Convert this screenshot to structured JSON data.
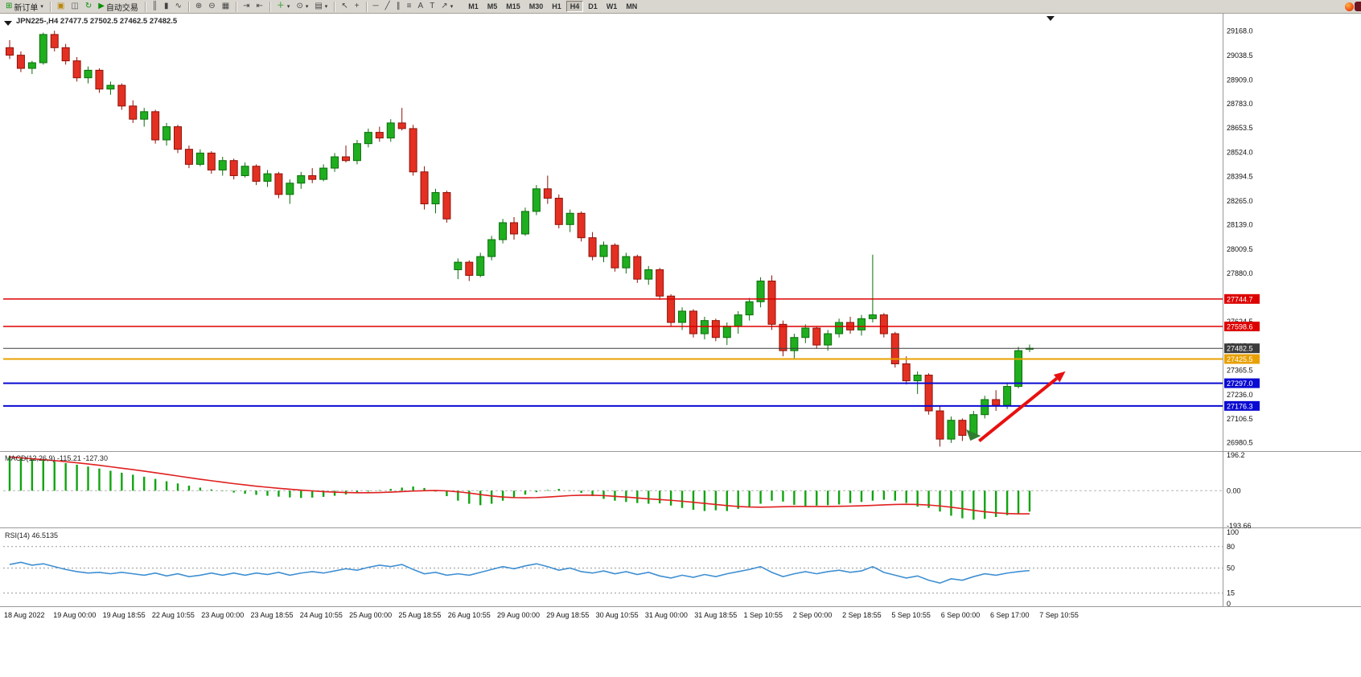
{
  "toolbar": {
    "groups": [
      {
        "items": [
          {
            "name": "new-order",
            "glyph": "⊞",
            "label": "新订单",
            "caret": true,
            "color": "#0a8f0a"
          }
        ]
      },
      {
        "items": [
          {
            "name": "chart-window",
            "glyph": "▣",
            "color": "#b8860b"
          },
          {
            "name": "market-watch",
            "glyph": "◫",
            "color": "#555555"
          },
          {
            "name": "refresh",
            "glyph": "↻",
            "color": "#0a8f0a"
          },
          {
            "name": "autotrade",
            "glyph": "▶",
            "label": "自动交易",
            "color": "#0a8f0a"
          }
        ]
      },
      {
        "items": [
          {
            "name": "bar-chart",
            "glyph": "║"
          },
          {
            "name": "candlestick-chart",
            "glyph": "▮"
          },
          {
            "name": "line-chart",
            "glyph": "∿"
          }
        ]
      },
      {
        "items": [
          {
            "name": "zoom-in",
            "glyph": "⊕"
          },
          {
            "name": "zoom-out",
            "glyph": "⊖"
          },
          {
            "name": "tile-windows",
            "glyph": "▦"
          }
        ]
      },
      {
        "items": [
          {
            "name": "auto-scroll",
            "glyph": "⇥"
          },
          {
            "name": "chart-shift",
            "glyph": "⇤"
          }
        ]
      },
      {
        "items": [
          {
            "name": "indicators",
            "glyph": "＋",
            "caret": true,
            "color": "#0a8f0a"
          },
          {
            "name": "periods",
            "glyph": "⊙",
            "caret": true
          },
          {
            "name": "templates",
            "glyph": "▤",
            "caret": true
          }
        ]
      },
      {
        "items": [
          {
            "name": "cursor",
            "glyph": "↖"
          },
          {
            "name": "crosshair",
            "glyph": "+"
          }
        ]
      },
      {
        "items": [
          {
            "name": "horizontal-line",
            "glyph": "─"
          },
          {
            "name": "trendline",
            "glyph": "╱"
          },
          {
            "name": "equidistant-channel",
            "glyph": "∥"
          },
          {
            "name": "fibonacci",
            "glyph": "≡"
          },
          {
            "name": "text",
            "glyph": "A"
          },
          {
            "name": "text-label",
            "glyph": "T"
          },
          {
            "name": "arrow-tools",
            "glyph": "↗",
            "caret": true
          }
        ]
      }
    ],
    "timeframes": [
      "M1",
      "M5",
      "M15",
      "M30",
      "H1",
      "H4",
      "D1",
      "W1",
      "MN"
    ],
    "active_timeframe": "H4"
  },
  "chart": {
    "symbol_label": "JPN225-,H4 27477.5 27502.5 27462.5 27482.5"
  },
  "chart_data": {
    "type": "candlestick",
    "title": "JPN225-,H4",
    "symbol": "JPN225-",
    "timeframe": "H4",
    "ohlc_current": {
      "open": 27477.5,
      "high": 27502.5,
      "low": 27462.5,
      "close": 27482.5
    },
    "colors": {
      "up_fill": "#1fae1f",
      "up_stroke": "#0b6e0b",
      "down_fill": "#e33022",
      "down_stroke": "#8f1208",
      "macd_histogram": "#0fa40f",
      "macd_signal": "#e02020",
      "rsi_line": "#3f8fd2"
    },
    "price_axis": [
      "29168.0",
      "29038.5",
      "28909.0",
      "28783.0",
      "28653.5",
      "28524.0",
      "28394.5",
      "28265.0",
      "28139.0",
      "28009.5",
      "27880.0",
      "27754.5",
      "27624.5",
      "27495.0",
      "27365.5",
      "27236.0",
      "27106.5",
      "26980.5"
    ],
    "x_labels": [
      "18 Aug 2022",
      "19 Aug 00:00",
      "19 Aug 18:55",
      "22 Aug 10:55",
      "23 Aug 00:00",
      "23 Aug 18:55",
      "24 Aug 10:55",
      "25 Aug 00:00",
      "25 Aug 18:55",
      "26 Aug 10:55",
      "29 Aug 00:00",
      "29 Aug 18:55",
      "30 Aug 10:55",
      "31 Aug 00:00",
      "31 Aug 18:55",
      "1 Sep 10:55",
      "2 Sep 00:00",
      "2 Sep 18:55",
      "5 Sep 10:55",
      "6 Sep 00:00",
      "6 Sep 17:00",
      "7 Sep 10:55"
    ],
    "candles": [
      [
        29080,
        29120,
        29020,
        29040
      ],
      [
        29040,
        29060,
        28950,
        28970
      ],
      [
        28970,
        29010,
        28940,
        29000
      ],
      [
        29000,
        29160,
        28990,
        29150
      ],
      [
        29150,
        29170,
        29060,
        29080
      ],
      [
        29080,
        29100,
        28990,
        29010
      ],
      [
        29010,
        29030,
        28900,
        28920
      ],
      [
        28920,
        28980,
        28890,
        28960
      ],
      [
        28960,
        28970,
        28840,
        28860
      ],
      [
        28860,
        28900,
        28830,
        28880
      ],
      [
        28880,
        28890,
        28750,
        28770
      ],
      [
        28770,
        28800,
        28680,
        28700
      ],
      [
        28700,
        28760,
        28660,
        28740
      ],
      [
        28740,
        28750,
        28570,
        28590
      ],
      [
        28590,
        28680,
        28560,
        28660
      ],
      [
        28660,
        28670,
        28520,
        28540
      ],
      [
        28540,
        28560,
        28440,
        28460
      ],
      [
        28460,
        28540,
        28450,
        28520
      ],
      [
        28520,
        28530,
        28410,
        28430
      ],
      [
        28430,
        28500,
        28400,
        28480
      ],
      [
        28480,
        28490,
        28380,
        28400
      ],
      [
        28400,
        28470,
        28390,
        28450
      ],
      [
        28450,
        28460,
        28350,
        28370
      ],
      [
        28370,
        28430,
        28340,
        28410
      ],
      [
        28410,
        28420,
        28280,
        28300
      ],
      [
        28300,
        28380,
        28250,
        28360
      ],
      [
        28360,
        28420,
        28330,
        28400
      ],
      [
        28400,
        28440,
        28360,
        28380
      ],
      [
        28380,
        28460,
        28370,
        28440
      ],
      [
        28440,
        28520,
        28420,
        28500
      ],
      [
        28500,
        28560,
        28470,
        28480
      ],
      [
        28480,
        28590,
        28460,
        28570
      ],
      [
        28570,
        28650,
        28550,
        28630
      ],
      [
        28630,
        28660,
        28580,
        28600
      ],
      [
        28600,
        28700,
        28580,
        28680
      ],
      [
        28680,
        28760,
        28640,
        28650
      ],
      [
        28650,
        28670,
        28400,
        28420
      ],
      [
        28420,
        28450,
        28220,
        28250
      ],
      [
        28250,
        28330,
        28200,
        28310
      ],
      [
        28310,
        28320,
        28150,
        28170
      ],
      [
        27900,
        27960,
        27850,
        27940
      ],
      [
        27940,
        27950,
        27840,
        27870
      ],
      [
        27870,
        27990,
        27860,
        27970
      ],
      [
        27970,
        28080,
        27950,
        28060
      ],
      [
        28060,
        28170,
        28040,
        28150
      ],
      [
        28150,
        28180,
        28060,
        28090
      ],
      [
        28090,
        28230,
        28080,
        28210
      ],
      [
        28210,
        28350,
        28190,
        28330
      ],
      [
        28330,
        28400,
        28250,
        28280
      ],
      [
        28280,
        28300,
        28120,
        28140
      ],
      [
        28140,
        28220,
        28100,
        28200
      ],
      [
        28200,
        28210,
        28050,
        28070
      ],
      [
        28070,
        28100,
        27950,
        27970
      ],
      [
        27970,
        28050,
        27940,
        28030
      ],
      [
        28030,
        28040,
        27890,
        27910
      ],
      [
        27910,
        27990,
        27880,
        27970
      ],
      [
        27970,
        27980,
        27830,
        27850
      ],
      [
        27850,
        27920,
        27820,
        27900
      ],
      [
        27900,
        27910,
        27740,
        27760
      ],
      [
        27760,
        27770,
        27600,
        27620
      ],
      [
        27620,
        27700,
        27580,
        27680
      ],
      [
        27680,
        27690,
        27540,
        27560
      ],
      [
        27560,
        27650,
        27530,
        27630
      ],
      [
        27630,
        27640,
        27520,
        27540
      ],
      [
        27540,
        27620,
        27500,
        27600
      ],
      [
        27600,
        27680,
        27560,
        27660
      ],
      [
        27660,
        27750,
        27630,
        27730
      ],
      [
        27730,
        27860,
        27700,
        27840
      ],
      [
        27840,
        27870,
        27580,
        27610
      ],
      [
        27610,
        27630,
        27440,
        27470
      ],
      [
        27470,
        27560,
        27430,
        27540
      ],
      [
        27540,
        27610,
        27510,
        27590
      ],
      [
        27590,
        27600,
        27480,
        27500
      ],
      [
        27500,
        27580,
        27470,
        27560
      ],
      [
        27560,
        27640,
        27540,
        27620
      ],
      [
        27620,
        27650,
        27560,
        27580
      ],
      [
        27580,
        27660,
        27550,
        27640
      ],
      [
        27640,
        27980,
        27620,
        27660
      ],
      [
        27660,
        27670,
        27540,
        27560
      ],
      [
        27560,
        27570,
        27380,
        27400
      ],
      [
        27400,
        27440,
        27290,
        27310
      ],
      [
        27310,
        27360,
        27240,
        27340
      ],
      [
        27340,
        27350,
        27130,
        27150
      ],
      [
        27150,
        27180,
        26960,
        27000
      ],
      [
        27000,
        27120,
        26980,
        27100
      ],
      [
        27100,
        27110,
        26990,
        27020
      ],
      [
        27020,
        27150,
        27010,
        27130
      ],
      [
        27130,
        27230,
        27110,
        27210
      ],
      [
        27210,
        27260,
        27150,
        27180
      ],
      [
        27180,
        27300,
        27160,
        27280
      ],
      [
        27280,
        27490,
        27270,
        27470
      ],
      [
        27477.5,
        27502.5,
        27462.5,
        27482.5
      ]
    ],
    "h_lines": [
      {
        "price": 27744.7,
        "label": "27744.7",
        "color": "#dd0000",
        "width": 1.5
      },
      {
        "price": 27598.6,
        "label": "27598.6",
        "color": "#dd0000",
        "width": 1.5
      },
      {
        "price": 27482.5,
        "label": "27482.5",
        "color": "#3c3c3c",
        "width": 1
      },
      {
        "price": 27425.5,
        "label": "27425.5",
        "color": "#e8a000",
        "width": 2
      },
      {
        "price": 27297.0,
        "label": "27297.0",
        "color": "#0a0ad2",
        "width": 2
      },
      {
        "price": 27176.3,
        "label": "27176.3",
        "color": "#0a0ad2",
        "width": 2
      }
    ],
    "macd": {
      "label": "MACD(12,26,9)",
      "value_main": "-115.21",
      "value_signal": "-127.30",
      "max": 196.2,
      "min": -193.66,
      "axis_labels": [
        {
          "v": 196.2,
          "t": "196.2"
        },
        {
          "v": 0,
          "t": "0.00"
        },
        {
          "v": -193.66,
          "t": "-193.66"
        }
      ],
      "histogram": [
        190,
        183,
        176,
        169,
        161,
        152,
        143,
        133,
        122,
        110,
        99,
        88,
        77,
        65,
        52,
        40,
        28,
        17,
        7,
        -2,
        -10,
        -17,
        -23,
        -28,
        -33,
        -37,
        -40,
        -38,
        -34,
        -28,
        -21,
        -13,
        -5,
        3,
        10,
        17,
        23,
        15,
        -5,
        -30,
        -55,
        -72,
        -80,
        -72,
        -55,
        -38,
        -22,
        -8,
        4,
        10,
        2,
        -12,
        -30,
        -45,
        -55,
        -62,
        -68,
        -72,
        -70,
        -82,
        -95,
        -105,
        -112,
        -108,
        -112,
        -100,
        -88,
        -72,
        -55,
        -60,
        -78,
        -85,
        -82,
        -80,
        -76,
        -68,
        -62,
        -55,
        -50,
        -55,
        -68,
        -88,
        -95,
        -115,
        -138,
        -152,
        -160,
        -155,
        -145,
        -135,
        -125,
        -115.21
      ],
      "signal": [
        186,
        181,
        176,
        171,
        166,
        160,
        154,
        147,
        140,
        132,
        124,
        116,
        108,
        99,
        90,
        81,
        72,
        63,
        55,
        47,
        39,
        32,
        25,
        19,
        13,
        8,
        3,
        -1,
        -5,
        -8,
        -10,
        -11,
        -11,
        -10,
        -8,
        -5,
        -2,
        0,
        1,
        -1,
        -6,
        -13,
        -21,
        -29,
        -35,
        -38,
        -39,
        -38,
        -35,
        -31,
        -27,
        -25,
        -25,
        -27,
        -31,
        -35,
        -40,
        -45,
        -49,
        -53,
        -58,
        -64,
        -70,
        -76,
        -82,
        -87,
        -90,
        -91,
        -90,
        -88,
        -87,
        -87,
        -87,
        -87,
        -86,
        -85,
        -83,
        -81,
        -78,
        -76,
        -75,
        -76,
        -79,
        -84,
        -91,
        -99,
        -108,
        -116,
        -122,
        -126,
        -127.5,
        -127.3
      ]
    },
    "rsi": {
      "label": "RSI(14)",
      "value": "46.5135",
      "levels": [
        80,
        50,
        15
      ],
      "axis_labels": [
        {
          "v": 100,
          "t": "100"
        },
        {
          "v": 80,
          "t": "80"
        },
        {
          "v": 50,
          "t": "50"
        },
        {
          "v": 15,
          "t": "15"
        },
        {
          "v": 0,
          "t": "0"
        }
      ],
      "values": [
        55,
        58,
        54,
        56,
        52,
        48,
        45,
        43,
        44,
        42,
        44,
        42,
        40,
        43,
        39,
        42,
        38,
        40,
        43,
        40,
        43,
        40,
        43,
        41,
        44,
        40,
        43,
        45,
        43,
        46,
        49,
        47,
        51,
        54,
        52,
        55,
        48,
        42,
        44,
        40,
        42,
        40,
        44,
        48,
        52,
        49,
        53,
        56,
        52,
        47,
        50,
        45,
        43,
        46,
        42,
        45,
        41,
        44,
        39,
        36,
        40,
        37,
        41,
        38,
        42,
        45,
        48,
        52,
        44,
        38,
        42,
        45,
        42,
        45,
        47,
        44,
        46,
        52,
        44,
        40,
        36,
        39,
        33,
        29,
        35,
        33,
        38,
        42,
        40,
        43,
        45,
        46.5
      ]
    },
    "annotations": {
      "arrow": {
        "x_index_start": 86.5,
        "price_start": 26990,
        "x_index_end": 94.2,
        "price_end": 27360,
        "color": "#e81010"
      },
      "marker": {
        "x_index": 86.0,
        "price": 27030,
        "color": "#2f7d32"
      }
    }
  }
}
